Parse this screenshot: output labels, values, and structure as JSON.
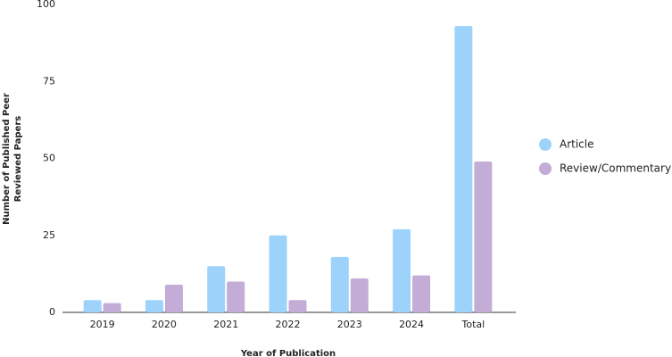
{
  "chart_data": {
    "type": "bar",
    "y_label": [
      "Number of Published Peer",
      "Reviewed Papers"
    ],
    "x_label": "Year of Publication",
    "categories": [
      "2019",
      "2020",
      "2021",
      "2022",
      "2023",
      "2024",
      "Total"
    ],
    "series": [
      {
        "name": "Article",
        "color": "#9dd3fb",
        "values": [
          4,
          4,
          15,
          25,
          18,
          27,
          93
        ]
      },
      {
        "name": "Review/Commentary",
        "color": "#c3acd6",
        "values": [
          3,
          9,
          10,
          4,
          11,
          12,
          49
        ]
      }
    ],
    "ylim": [
      0,
      100
    ],
    "yticks": [
      0,
      25,
      50,
      75,
      100
    ],
    "grid": false,
    "legend": "right"
  }
}
